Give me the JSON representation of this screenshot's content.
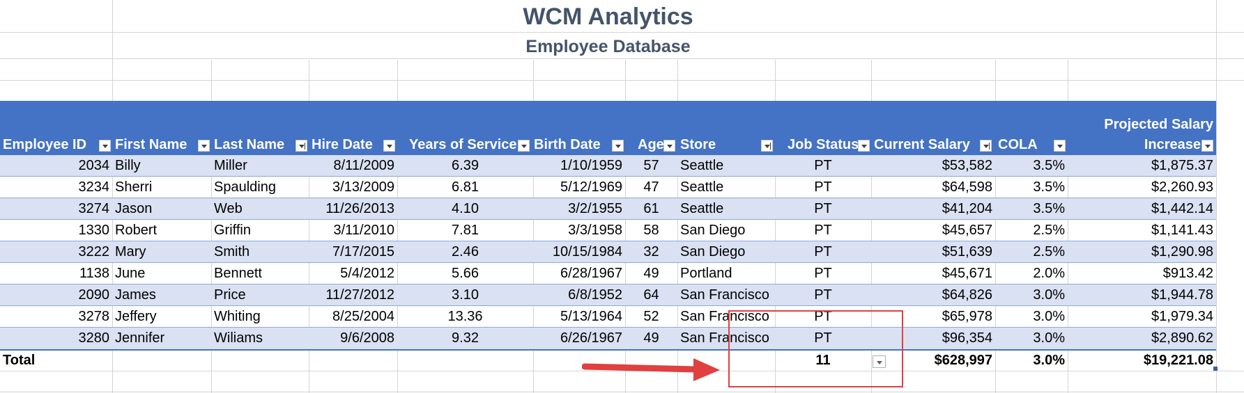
{
  "title": "WCM Analytics",
  "subtitle": "Employee Database",
  "columns": [
    {
      "label": "Employee ID",
      "filter": "normal"
    },
    {
      "label": "First Name",
      "filter": "normal"
    },
    {
      "label": "Last Name",
      "filter": "sorted"
    },
    {
      "label": "Hire Date",
      "filter": "normal"
    },
    {
      "label": "Years of Service",
      "filter": "normal"
    },
    {
      "label": "Birth Date",
      "filter": "normal"
    },
    {
      "label": "Age",
      "filter": "normal"
    },
    {
      "label": "Store",
      "filter": "sorted"
    },
    {
      "label": "Job Status",
      "filter": "filtered"
    },
    {
      "label": "Current Salary",
      "filter": "sorted"
    },
    {
      "label": "COLA",
      "filter": "normal"
    },
    {
      "label_line1": "Projected Salary",
      "label_line2": "Increase",
      "filter": "normal"
    }
  ],
  "rows": [
    [
      "2034",
      "Billy",
      "Miller",
      "8/11/2009",
      "6.39",
      "1/10/1959",
      "57",
      "Seattle",
      "PT",
      "$53,582",
      "3.5%",
      "$1,875.37"
    ],
    [
      "3234",
      "Sherri",
      "Spaulding",
      "3/13/2009",
      "6.81",
      "5/12/1969",
      "47",
      "Seattle",
      "PT",
      "$64,598",
      "3.5%",
      "$2,260.93"
    ],
    [
      "3274",
      "Jason",
      "Web",
      "11/26/2013",
      "4.10",
      "3/2/1955",
      "61",
      "Seattle",
      "PT",
      "$41,204",
      "3.5%",
      "$1,442.14"
    ],
    [
      "1330",
      "Robert",
      "Griffin",
      "3/11/2010",
      "7.81",
      "3/3/1958",
      "58",
      "San Diego",
      "PT",
      "$45,657",
      "2.5%",
      "$1,141.43"
    ],
    [
      "3222",
      "Mary",
      "Smith",
      "7/17/2015",
      "2.46",
      "10/15/1984",
      "32",
      "San Diego",
      "PT",
      "$51,639",
      "2.5%",
      "$1,290.98"
    ],
    [
      "1138",
      "June",
      "Bennett",
      "5/4/2012",
      "5.66",
      "6/28/1967",
      "49",
      "Portland",
      "PT",
      "$45,671",
      "2.0%",
      "$913.42"
    ],
    [
      "2090",
      "James",
      "Price",
      "11/27/2012",
      "3.10",
      "6/8/1952",
      "64",
      "San Francisco",
      "PT",
      "$64,826",
      "3.0%",
      "$1,944.78"
    ],
    [
      "3278",
      "Jeffery",
      "Whiting",
      "8/25/2004",
      "13.36",
      "5/13/1964",
      "52",
      "San Francisco",
      "PT",
      "$65,978",
      "3.0%",
      "$1,979.34"
    ],
    [
      "3280",
      "Jennifer",
      "Wiliams",
      "9/6/2008",
      "9.32",
      "6/26/1967",
      "49",
      "San Francisco",
      "PT",
      "$96,354",
      "3.0%",
      "$2,890.62"
    ]
  ],
  "total": {
    "label": "Total",
    "job_status_count": "11",
    "current_salary": "$628,997",
    "cola": "3.0%",
    "projected_increase": "$19,221.08"
  },
  "colors": {
    "header_bg": "#4472c4",
    "band_bg": "#d9e1f2",
    "title_color": "#44546a",
    "annotation_red": "#e04040"
  }
}
